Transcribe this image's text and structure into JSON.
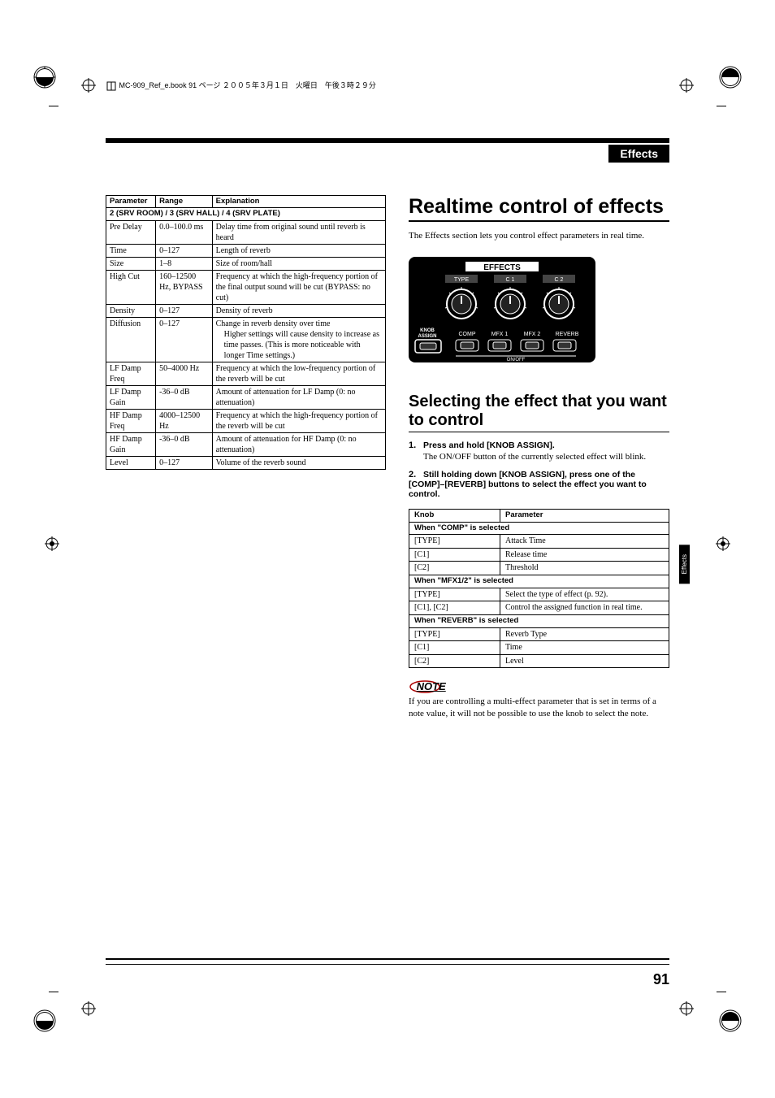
{
  "meta": "MC-909_Ref_e.book  91 ページ  ２００５年３月１日　火曜日　午後３時２９分",
  "header": "Effects",
  "side_tab": "Effects",
  "page_number": "91",
  "param_table": {
    "headers": [
      "Parameter",
      "Range",
      "Explanation"
    ],
    "section": "2 (SRV ROOM) / 3 (SRV HALL) / 4 (SRV PLATE)",
    "rows": [
      [
        "Pre Delay",
        "0.0–100.0 ms",
        "Delay time from original sound until reverb is heard"
      ],
      [
        "Time",
        "0–127",
        "Length of reverb"
      ],
      [
        "Size",
        "1–8",
        "Size of room/hall"
      ],
      [
        "High Cut",
        "160–12500 Hz, BYPASS",
        "Frequency at which the high-frequency portion of the final output sound will be cut (BYPASS: no cut)"
      ],
      [
        "Density",
        "0–127",
        "Density of reverb"
      ],
      [
        "Diffusion",
        "0–127",
        "Change in reverb density over time\n\tHigher settings will cause density to increase as time passes. (This is more noticeable with longer Time settings.)"
      ],
      [
        "LF Damp Freq",
        "50–4000 Hz",
        "Frequency at which the low-frequency portion of the reverb will be cut"
      ],
      [
        "LF Damp Gain",
        "-36–0 dB",
        "Amount of attenuation for LF Damp (0: no attenuation)"
      ],
      [
        "HF Damp Freq",
        "4000–12500 Hz",
        "Frequency at which the high-frequency portion of the reverb will be cut"
      ],
      [
        "HF Damp Gain",
        "-36–0 dB",
        "Amount of attenuation for HF Damp (0: no attenuation)"
      ],
      [
        "Level",
        "0–127",
        "Volume of the reverb sound"
      ]
    ]
  },
  "h1": "Realtime control of effects",
  "intro": "The Effects section lets you control effect parameters in real time.",
  "panel": {
    "title": "EFFECTS",
    "knobs": [
      "TYPE",
      "C 1",
      "C 2"
    ],
    "assign": "KNOB ASSIGN",
    "buttons": [
      "COMP",
      "MFX 1",
      "MFX 2",
      "REVERB"
    ],
    "onoff": "ON/OFF"
  },
  "h2": "Selecting the effect that you want to control",
  "steps": [
    {
      "n": "1.",
      "bold": "Press and hold [KNOB ASSIGN].",
      "body": "The ON/OFF button of the currently selected effect will blink."
    },
    {
      "n": "2.",
      "bold": "Still holding down [KNOB ASSIGN], press one of the [COMP]–[REVERB] buttons to select the effect you want to control.",
      "body": ""
    }
  ],
  "knob_table": {
    "headers": [
      "Knob",
      "Parameter"
    ],
    "sections": [
      {
        "title": "When \"COMP\" is selected",
        "rows": [
          [
            "[TYPE]",
            "Attack Time"
          ],
          [
            "[C1]",
            "Release time"
          ],
          [
            "[C2]",
            "Threshold"
          ]
        ]
      },
      {
        "title": "When \"MFX1/2\" is selected",
        "rows": [
          [
            "[TYPE]",
            "Select the type of effect (p. 92)."
          ],
          [
            "[C1], [C2]",
            "Control the assigned function in real time."
          ]
        ]
      },
      {
        "title": "When \"REVERB\" is selected",
        "rows": [
          [
            "[TYPE]",
            "Reverb Type"
          ],
          [
            "[C1]",
            "Time"
          ],
          [
            "[C2]",
            "Level"
          ]
        ]
      }
    ]
  },
  "note_label": "NOTE",
  "note_text": "If you are controlling a multi-effect parameter that is set in terms of a note value, it will not be possible to use the knob to select the note."
}
